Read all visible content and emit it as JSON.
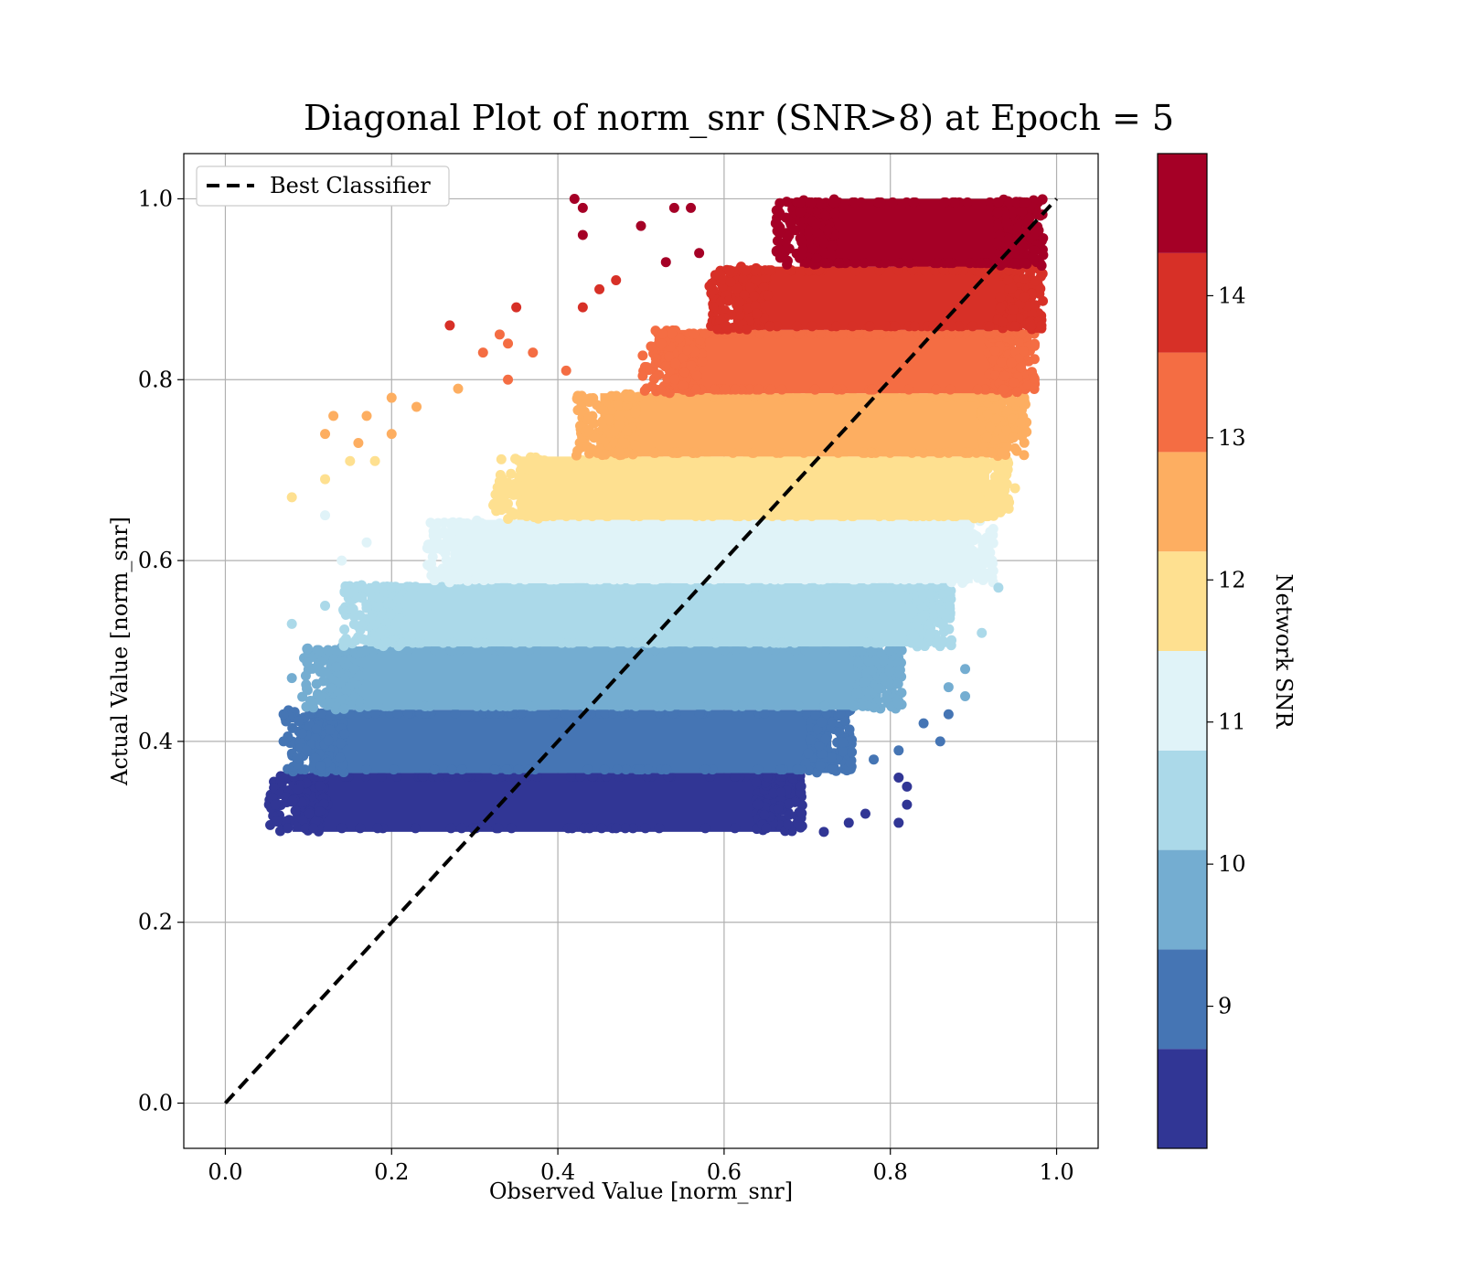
{
  "chart_data": {
    "type": "scatter",
    "title": "Diagonal Plot of norm_snr (SNR>8) at Epoch = 5",
    "xlabel": "Observed Value [norm_snr]",
    "ylabel": "Actual Value [norm_snr]",
    "xlim": [
      -0.05,
      1.05
    ],
    "ylim": [
      -0.05,
      1.05
    ],
    "x_ticks": [
      0.0,
      0.2,
      0.4,
      0.6,
      0.8,
      1.0
    ],
    "x_tick_labels": [
      "0.0",
      "0.2",
      "0.4",
      "0.6",
      "0.8",
      "1.0"
    ],
    "y_ticks": [
      0.0,
      0.2,
      0.4,
      0.6,
      0.8,
      1.0
    ],
    "y_tick_labels": [
      "0.0",
      "0.2",
      "0.4",
      "0.6",
      "0.8",
      "1.0"
    ],
    "grid": true,
    "legend": {
      "placement": "top-left",
      "entries": [
        "Best Classifier"
      ]
    },
    "reference_line": {
      "name": "Best Classifier",
      "x": [
        0.0,
        1.0
      ],
      "y": [
        0.0,
        1.0
      ],
      "style": "dashed",
      "color": "#000000"
    },
    "colorbar": {
      "label": "Network SNR",
      "range": [
        8,
        15
      ],
      "ticks": [
        9,
        10,
        11,
        12,
        13,
        14
      ],
      "tick_labels": [
        "9",
        "10",
        "11",
        "12",
        "13",
        "14"
      ],
      "levels": [
        {
          "snr_min": 8.0,
          "snr_max": 8.7,
          "color": "#313695"
        },
        {
          "snr_min": 8.7,
          "snr_max": 9.4,
          "color": "#4575b4"
        },
        {
          "snr_min": 9.4,
          "snr_max": 10.1,
          "color": "#74add1"
        },
        {
          "snr_min": 10.1,
          "snr_max": 10.8,
          "color": "#abd9e9"
        },
        {
          "snr_min": 10.8,
          "snr_max": 11.5,
          "color": "#e0f3f8"
        },
        {
          "snr_min": 11.5,
          "snr_max": 12.2,
          "color": "#fee090"
        },
        {
          "snr_min": 12.2,
          "snr_max": 12.9,
          "color": "#fdae61"
        },
        {
          "snr_min": 12.9,
          "snr_max": 13.6,
          "color": "#f46d43"
        },
        {
          "snr_min": 13.6,
          "snr_max": 14.3,
          "color": "#d73027"
        },
        {
          "snr_min": 14.3,
          "snr_max": 15.0,
          "color": "#a50026"
        }
      ]
    },
    "bands": [
      {
        "y_range": [
          0.3,
          0.365
        ],
        "x_range": [
          0.07,
          0.68
        ],
        "color": "#313695"
      },
      {
        "y_range": [
          0.365,
          0.435
        ],
        "x_range": [
          0.09,
          0.74
        ],
        "color": "#4575b4"
      },
      {
        "y_range": [
          0.435,
          0.505
        ],
        "x_range": [
          0.11,
          0.8
        ],
        "color": "#74add1"
      },
      {
        "y_range": [
          0.505,
          0.575
        ],
        "x_range": [
          0.16,
          0.86
        ],
        "color": "#abd9e9"
      },
      {
        "y_range": [
          0.575,
          0.645
        ],
        "x_range": [
          0.26,
          0.91
        ],
        "color": "#e0f3f8"
      },
      {
        "y_range": [
          0.645,
          0.715
        ],
        "x_range": [
          0.34,
          0.93
        ],
        "color": "#fee090"
      },
      {
        "y_range": [
          0.715,
          0.785
        ],
        "x_range": [
          0.44,
          0.95
        ],
        "color": "#fdae61"
      },
      {
        "y_range": [
          0.785,
          0.855
        ],
        "x_range": [
          0.52,
          0.96
        ],
        "color": "#f46d43"
      },
      {
        "y_range": [
          0.855,
          0.925
        ],
        "x_range": [
          0.6,
          0.97
        ],
        "color": "#d73027"
      },
      {
        "y_range": [
          0.925,
          1.0
        ],
        "x_range": [
          0.68,
          0.97
        ],
        "color": "#a50026"
      }
    ],
    "outliers": [
      {
        "x": 0.42,
        "y": 1.0,
        "color": "#a50026"
      },
      {
        "x": 0.43,
        "y": 0.99,
        "color": "#a50026"
      },
      {
        "x": 0.43,
        "y": 0.96,
        "color": "#a50026"
      },
      {
        "x": 0.5,
        "y": 0.97,
        "color": "#a50026"
      },
      {
        "x": 0.54,
        "y": 0.99,
        "color": "#a50026"
      },
      {
        "x": 0.56,
        "y": 0.99,
        "color": "#a50026"
      },
      {
        "x": 0.53,
        "y": 0.93,
        "color": "#a50026"
      },
      {
        "x": 0.57,
        "y": 0.94,
        "color": "#a50026"
      },
      {
        "x": 0.27,
        "y": 0.86,
        "color": "#d73027"
      },
      {
        "x": 0.35,
        "y": 0.88,
        "color": "#d73027"
      },
      {
        "x": 0.43,
        "y": 0.88,
        "color": "#d73027"
      },
      {
        "x": 0.45,
        "y": 0.9,
        "color": "#d73027"
      },
      {
        "x": 0.47,
        "y": 0.91,
        "color": "#d73027"
      },
      {
        "x": 0.31,
        "y": 0.83,
        "color": "#f46d43"
      },
      {
        "x": 0.33,
        "y": 0.85,
        "color": "#f46d43"
      },
      {
        "x": 0.34,
        "y": 0.84,
        "color": "#f46d43"
      },
      {
        "x": 0.37,
        "y": 0.83,
        "color": "#f46d43"
      },
      {
        "x": 0.34,
        "y": 0.8,
        "color": "#f46d43"
      },
      {
        "x": 0.41,
        "y": 0.81,
        "color": "#f46d43"
      },
      {
        "x": 0.12,
        "y": 0.74,
        "color": "#fdae61"
      },
      {
        "x": 0.13,
        "y": 0.76,
        "color": "#fdae61"
      },
      {
        "x": 0.16,
        "y": 0.73,
        "color": "#fdae61"
      },
      {
        "x": 0.17,
        "y": 0.76,
        "color": "#fdae61"
      },
      {
        "x": 0.2,
        "y": 0.74,
        "color": "#fdae61"
      },
      {
        "x": 0.2,
        "y": 0.78,
        "color": "#fdae61"
      },
      {
        "x": 0.23,
        "y": 0.77,
        "color": "#fdae61"
      },
      {
        "x": 0.28,
        "y": 0.79,
        "color": "#fdae61"
      },
      {
        "x": 0.08,
        "y": 0.67,
        "color": "#fee090"
      },
      {
        "x": 0.12,
        "y": 0.69,
        "color": "#fee090"
      },
      {
        "x": 0.15,
        "y": 0.71,
        "color": "#fee090"
      },
      {
        "x": 0.18,
        "y": 0.71,
        "color": "#fee090"
      },
      {
        "x": 0.95,
        "y": 0.68,
        "color": "#fee090"
      },
      {
        "x": 0.12,
        "y": 0.65,
        "color": "#e0f3f8"
      },
      {
        "x": 0.14,
        "y": 0.6,
        "color": "#e0f3f8"
      },
      {
        "x": 0.17,
        "y": 0.62,
        "color": "#e0f3f8"
      },
      {
        "x": 0.08,
        "y": 0.53,
        "color": "#abd9e9"
      },
      {
        "x": 0.12,
        "y": 0.55,
        "color": "#abd9e9"
      },
      {
        "x": 0.91,
        "y": 0.52,
        "color": "#abd9e9"
      },
      {
        "x": 0.93,
        "y": 0.57,
        "color": "#abd9e9"
      },
      {
        "x": 0.08,
        "y": 0.47,
        "color": "#74add1"
      },
      {
        "x": 0.89,
        "y": 0.48,
        "color": "#74add1"
      },
      {
        "x": 0.89,
        "y": 0.45,
        "color": "#74add1"
      },
      {
        "x": 0.87,
        "y": 0.46,
        "color": "#74add1"
      },
      {
        "x": 0.07,
        "y": 0.43,
        "color": "#4575b4"
      },
      {
        "x": 0.07,
        "y": 0.4,
        "color": "#4575b4"
      },
      {
        "x": 0.86,
        "y": 0.4,
        "color": "#4575b4"
      },
      {
        "x": 0.87,
        "y": 0.43,
        "color": "#4575b4"
      },
      {
        "x": 0.81,
        "y": 0.39,
        "color": "#4575b4"
      },
      {
        "x": 0.84,
        "y": 0.42,
        "color": "#4575b4"
      },
      {
        "x": 0.78,
        "y": 0.38,
        "color": "#4575b4"
      },
      {
        "x": 0.06,
        "y": 0.33,
        "color": "#313695"
      },
      {
        "x": 0.81,
        "y": 0.36,
        "color": "#313695"
      },
      {
        "x": 0.82,
        "y": 0.35,
        "color": "#313695"
      },
      {
        "x": 0.82,
        "y": 0.33,
        "color": "#313695"
      },
      {
        "x": 0.81,
        "y": 0.31,
        "color": "#313695"
      },
      {
        "x": 0.72,
        "y": 0.3,
        "color": "#313695"
      },
      {
        "x": 0.75,
        "y": 0.31,
        "color": "#313695"
      },
      {
        "x": 0.77,
        "y": 0.32,
        "color": "#313695"
      }
    ]
  }
}
